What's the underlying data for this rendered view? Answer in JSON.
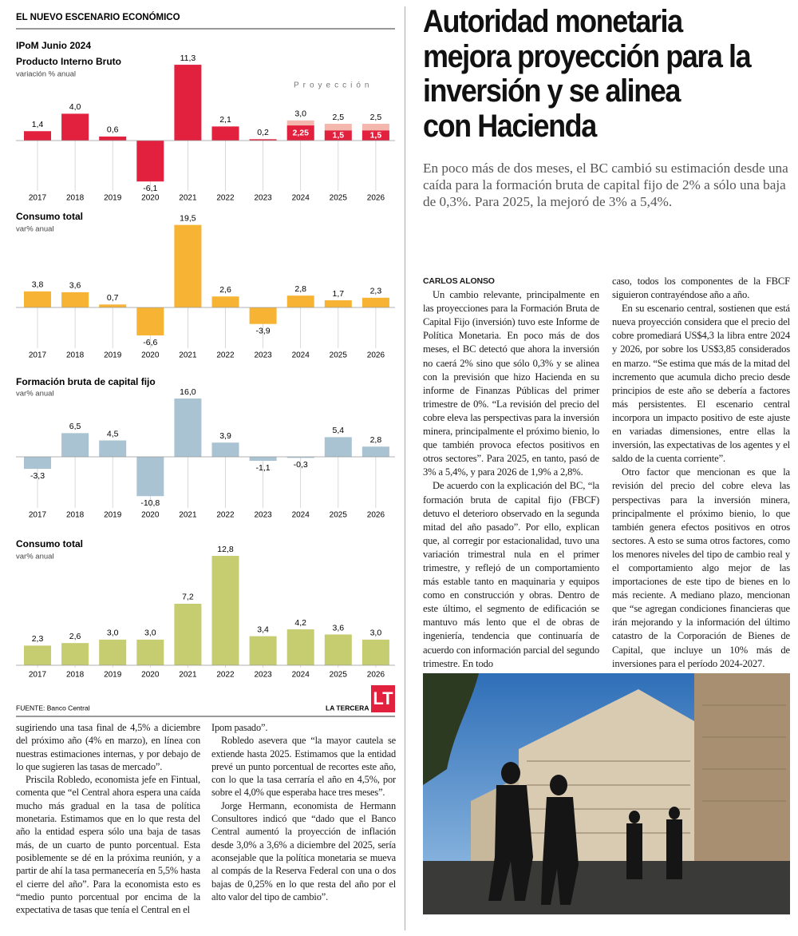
{
  "section_label": "EL NUEVO ESCENARIO ECONÓMICO",
  "chart_data": [
    {
      "type": "bar",
      "supertitle": "IPoM Junio 2024",
      "title": "Producto Interno Bruto",
      "subtitle": "variación % anual",
      "annotation": "Proyección",
      "categories": [
        "2017",
        "2018",
        "2019",
        "2020",
        "2021",
        "2022",
        "2023",
        "2024",
        "2025",
        "2026"
      ],
      "values": [
        1.4,
        4.0,
        0.6,
        -6.1,
        11.3,
        2.1,
        0.2,
        2.25,
        1.5,
        1.5
      ],
      "value_labels": [
        "1,4",
        "4,0",
        "0,6",
        "-6,1",
        "11,3",
        "2,1",
        "0,2",
        "2,25",
        "1,5",
        "1,5"
      ],
      "color": "#e2213f",
      "projection_values": [
        null,
        null,
        null,
        null,
        null,
        null,
        null,
        3.0,
        2.5,
        2.5
      ],
      "projection_labels": [
        null,
        null,
        null,
        null,
        null,
        null,
        null,
        "3,0",
        "2,5",
        "2,5"
      ],
      "projection_color": "#f4b7ae"
    },
    {
      "type": "bar",
      "title": "Consumo total",
      "subtitle": "var% anual",
      "categories": [
        "2017",
        "2018",
        "2019",
        "2020",
        "2021",
        "2022",
        "2023",
        "2024",
        "2025",
        "2026"
      ],
      "values": [
        3.8,
        3.6,
        0.7,
        -6.6,
        19.5,
        2.6,
        -3.9,
        2.8,
        1.7,
        2.3
      ],
      "value_labels": [
        "3,8",
        "3,6",
        "0,7",
        "-6,6",
        "19,5",
        "2,6",
        "-3,9",
        "2,8",
        "1,7",
        "2,3"
      ],
      "color": "#f6b334"
    },
    {
      "type": "bar",
      "title": "Formación bruta de capital fijo",
      "subtitle": "var% anual",
      "categories": [
        "2017",
        "2018",
        "2019",
        "2020",
        "2021",
        "2022",
        "2023",
        "2024",
        "2025",
        "2026"
      ],
      "values": [
        -3.3,
        6.5,
        4.5,
        -10.8,
        16.0,
        3.9,
        -1.1,
        -0.3,
        5.4,
        2.8
      ],
      "value_labels": [
        "-3,3",
        "6,5",
        "4,5",
        "-10,8",
        "16,0",
        "3,9",
        "-1,1",
        "-0,3",
        "5,4",
        "2,8"
      ],
      "color": "#a9c3d2"
    },
    {
      "type": "bar",
      "title": "Consumo total",
      "subtitle": "var% anual",
      "categories": [
        "2017",
        "2018",
        "2019",
        "2020",
        "2021",
        "2022",
        "2023",
        "2024",
        "2025",
        "2026"
      ],
      "values": [
        2.3,
        2.6,
        3.0,
        3.0,
        7.2,
        12.8,
        3.4,
        4.2,
        3.6,
        3.0
      ],
      "value_labels": [
        "2,3",
        "2,6",
        "3,0",
        "3,0",
        "7,2",
        "12,8",
        "3,4",
        "4,2",
        "3,6",
        "3,0"
      ],
      "color": "#c6cc70"
    }
  ],
  "source": "FUENTE: Banco Central",
  "publisher": "LA TERCERA",
  "logo": "LT",
  "continuation": {
    "columns": [
      [
        {
          "text": "sugiriendo una tasa final de 4,5% a diciembre del próximo año (4% en marzo), en línea con nuestras estimaciones internas, y por debajo de lo que sugieren las tasas de mercado”.",
          "indent": false
        },
        {
          "text": "Priscila Robledo, economista jefe en Fintual, comenta que “el Central ahora espera una caída mucho más gradual en la tasa de política monetaria. Estimamos que en lo que resta del año la entidad espera sólo una baja de tasas más, de un cuarto de punto porcentual. Esta posiblemente se dé en la próxima reunión, y a partir de ahí la tasa permanecería en 5,5% hasta el cierre del año”. Para la economista esto es “medio punto porcentual por encima de la expectativa de tasas que tenía el Central en el",
          "indent": true
        }
      ],
      [
        {
          "text": "Ipom pasado”.",
          "indent": false
        },
        {
          "text": "Robledo asevera que “la mayor cautela se extiende hasta 2025. Estimamos que la entidad prevé un punto porcentual de recortes este año, con lo que la tasa cerraría el año en 4,5%, por sobre el 4,0% que esperaba hace tres meses”.",
          "indent": true
        },
        {
          "text": "Jorge Hermann, economista de Hermann Consultores indicó que “dado que el Banco Central aumentó la proyección de inflación desde 3,0% a 3,6% a diciembre del 2025, sería aconsejable que la política monetaria se mueva al compás de la Reserva Federal con una o dos bajas de 0,25% en lo que resta del año por el alto valor del tipo de cambio”.",
          "indent": true
        }
      ]
    ]
  },
  "article": {
    "headline": [
      "Autoridad monetaria",
      "mejora proyección para la",
      "inversión y se alinea",
      "con Hacienda"
    ],
    "deck": "En poco más de dos meses, el BC cambió su estimación desde una caída para la formación bruta de capital fijo de 2% a sólo una baja de 0,3%. Para 2025, la mejoró de 3% a 5,4%.",
    "byline": "CARLOS ALONSO",
    "columns": [
      [
        {
          "text": "Un cambio relevante, principalmente en las proyecciones para la Formación Bruta de Capital Fijo (inversión) tuvo este Informe de Política Monetaria. En poco más de dos meses, el BC detectó que ahora la inversión no caerá 2% sino que sólo 0,3% y se alinea con la previsión que hizo Hacienda en su informe de Finanzas Públicas del primer trimestre de 0%. “La revisión del precio del cobre eleva las perspectivas para la inversión minera, principalmente el próximo bienio, lo que también provoca efectos positivos en otros sectores”. Para 2025, en tanto, pasó de 3% a 5,4%, y para 2026 de 1,9% a 2,8%.",
          "indent": true
        },
        {
          "text": "De acuerdo con la explicación del BC, “la formación bruta de capital fijo (FBCF) detuvo el deterioro observado en la segunda mitad del año pasado”. Por ello, explican que, al corregir por estacionalidad, tuvo una variación trimestral nula en el primer trimestre, y reflejó de un comportamiento más estable tanto en maquinaria y equipos como en construcción y obras. Dentro de este último, el segmento de edificación se mantuvo más lento que el de obras de ingeniería, tendencia que continuaría de acuerdo con información parcial del segundo trimestre. En todo",
          "indent": true
        }
      ],
      [
        {
          "text": "caso, todos los componentes de la FBCF siguieron contrayéndose año a año.",
          "indent": false
        },
        {
          "text": "En su escenario central, sostienen que está nueva proyección considera que el precio del cobre promediará US$4,3 la libra entre 2024 y 2026, por sobre los US$3,85 considerados en marzo. “Se estima que más de la mitad del incremento que acumula dicho precio desde principios de este año se debería a factores más persistentes. El escenario central incorpora un impacto positivo de este ajuste en variadas dimensiones, entre ellas la inversión, las expectativas de los agentes y el saldo de la cuenta corriente”.",
          "indent": true
        },
        {
          "text": "Otro factor que mencionan es que la revisión del precio del cobre eleva las perspectivas para la inversión minera, principalmente el próximo bienio, lo que también genera efectos positivos en otros sectores. A esto se suma otros factores, como los menores niveles del tipo de cambio real y el comportamiento algo mejor de las importaciones de este tipo de bienes en lo más reciente. A mediano plazo, mencionan que “se agregan condiciones financieras que irán mejorando y la información del último catastro de la Corporación de Bienes de Capital, que incluye un 10% más de inversiones para el período 2024-2027.",
          "indent": true
        }
      ]
    ]
  }
}
